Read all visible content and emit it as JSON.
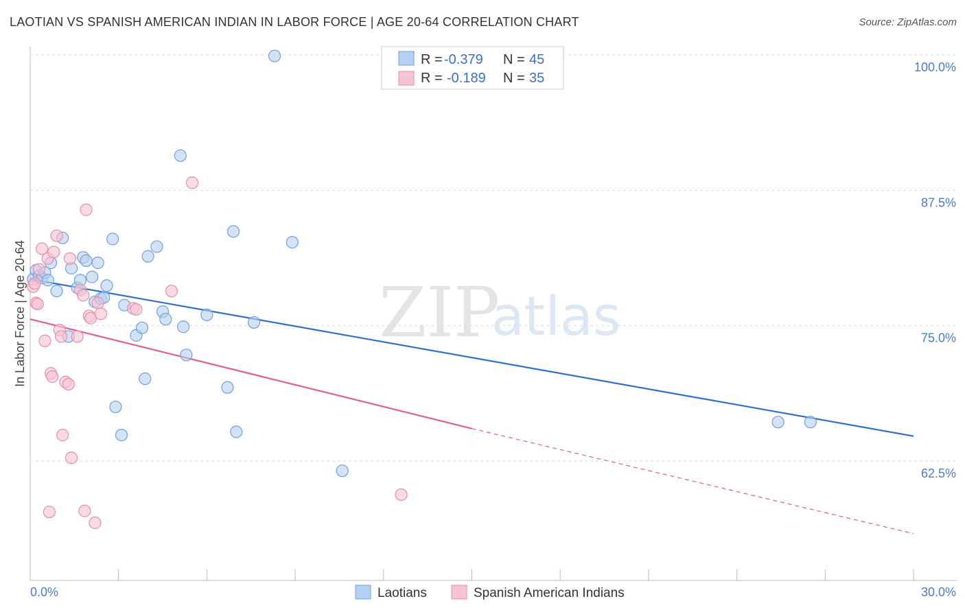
{
  "title": "LAOTIAN VS SPANISH AMERICAN INDIAN IN LABOR FORCE | AGE 20-64 CORRELATION CHART",
  "source": "Source: ZipAtlas.com",
  "watermark": {
    "part1": "ZIP",
    "part2": "atlas"
  },
  "chart_data": {
    "type": "scatter",
    "title": "LAOTIAN VS SPANISH AMERICAN INDIAN IN LABOR FORCE | AGE 20-64 CORRELATION CHART",
    "xlabel": "",
    "ylabel": "In Labor Force | Age 20-64",
    "xlim": [
      0,
      30
    ],
    "ylim": [
      52,
      102
    ],
    "x_tick_labels": [
      {
        "value": 0,
        "label": "0.0%"
      },
      {
        "value": 30,
        "label": "30.0%"
      }
    ],
    "y_ticks": [
      {
        "value": 100,
        "label": "100.0%"
      },
      {
        "value": 87.5,
        "label": "87.5%"
      },
      {
        "value": 75,
        "label": "75.0%"
      },
      {
        "value": 62.5,
        "label": "62.5%"
      }
    ],
    "legend": {
      "placement": "top-center",
      "entries": [
        {
          "r_label": "R =",
          "r_value": "-0.379",
          "n_label": "N =",
          "n_value": "45"
        },
        {
          "r_label": "R =",
          "r_value": "-0.189",
          "n_label": "N =",
          "n_value": "35"
        }
      ]
    },
    "series": [
      {
        "name": "Laotians",
        "color": "#6fa0dd",
        "fill": "#b7cff0",
        "line_color": "#2f6fcb",
        "trend": {
          "x0": 0,
          "y0": 79.3,
          "x1": 30,
          "y1": 64.8,
          "dashed_from": null
        },
        "points": [
          {
            "x": 0.1,
            "y": 79.3
          },
          {
            "x": 0.2,
            "y": 80.1
          },
          {
            "x": 0.3,
            "y": 79.6
          },
          {
            "x": 0.4,
            "y": 79.4
          },
          {
            "x": 0.5,
            "y": 79.9
          },
          {
            "x": 0.6,
            "y": 79.2
          },
          {
            "x": 0.7,
            "y": 80.8
          },
          {
            "x": 0.9,
            "y": 78.2
          },
          {
            "x": 1.1,
            "y": 83.1
          },
          {
            "x": 1.3,
            "y": 74.0
          },
          {
            "x": 1.4,
            "y": 80.3
          },
          {
            "x": 1.6,
            "y": 78.5
          },
          {
            "x": 1.7,
            "y": 79.2
          },
          {
            "x": 1.8,
            "y": 81.3
          },
          {
            "x": 1.9,
            "y": 81.0
          },
          {
            "x": 2.1,
            "y": 79.5
          },
          {
            "x": 2.2,
            "y": 77.2
          },
          {
            "x": 2.3,
            "y": 80.8
          },
          {
            "x": 2.4,
            "y": 77.5
          },
          {
            "x": 2.5,
            "y": 77.6
          },
          {
            "x": 2.6,
            "y": 78.7
          },
          {
            "x": 2.8,
            "y": 83.0
          },
          {
            "x": 2.9,
            "y": 67.5
          },
          {
            "x": 3.1,
            "y": 64.9
          },
          {
            "x": 3.2,
            "y": 76.9
          },
          {
            "x": 3.6,
            "y": 74.1
          },
          {
            "x": 3.8,
            "y": 74.8
          },
          {
            "x": 3.9,
            "y": 70.1
          },
          {
            "x": 4.0,
            "y": 81.4
          },
          {
            "x": 4.3,
            "y": 82.3
          },
          {
            "x": 4.5,
            "y": 76.3
          },
          {
            "x": 4.6,
            "y": 75.6
          },
          {
            "x": 5.1,
            "y": 90.7
          },
          {
            "x": 5.2,
            "y": 74.9
          },
          {
            "x": 5.3,
            "y": 72.3
          },
          {
            "x": 6.0,
            "y": 76.0
          },
          {
            "x": 6.7,
            "y": 69.3
          },
          {
            "x": 6.9,
            "y": 83.7
          },
          {
            "x": 7.0,
            "y": 65.2
          },
          {
            "x": 7.6,
            "y": 75.3
          },
          {
            "x": 8.3,
            "y": 99.9
          },
          {
            "x": 8.9,
            "y": 82.7
          },
          {
            "x": 10.6,
            "y": 61.6
          },
          {
            "x": 25.4,
            "y": 66.1
          },
          {
            "x": 26.5,
            "y": 66.1
          }
        ]
      },
      {
        "name": "Spanish American Indians",
        "color": "#e58fab",
        "fill": "#f6c3d3",
        "line_color": "#e05f8a",
        "trend": {
          "x0": 0,
          "y0": 75.6,
          "x1": 15,
          "y1": 65.5,
          "dashed_from": 15,
          "dash_x1": 30,
          "dash_y1": 55.8
        },
        "points": [
          {
            "x": 0.1,
            "y": 78.6
          },
          {
            "x": 0.15,
            "y": 78.9
          },
          {
            "x": 0.2,
            "y": 77.1
          },
          {
            "x": 0.25,
            "y": 77.0
          },
          {
            "x": 0.3,
            "y": 80.2
          },
          {
            "x": 0.4,
            "y": 82.1
          },
          {
            "x": 0.5,
            "y": 73.6
          },
          {
            "x": 0.6,
            "y": 81.2
          },
          {
            "x": 0.65,
            "y": 57.8
          },
          {
            "x": 0.7,
            "y": 70.6
          },
          {
            "x": 0.75,
            "y": 70.3
          },
          {
            "x": 0.8,
            "y": 81.8
          },
          {
            "x": 0.9,
            "y": 83.3
          },
          {
            "x": 1.0,
            "y": 74.6
          },
          {
            "x": 1.05,
            "y": 74.0
          },
          {
            "x": 1.1,
            "y": 64.9
          },
          {
            "x": 1.2,
            "y": 69.8
          },
          {
            "x": 1.3,
            "y": 69.6
          },
          {
            "x": 1.35,
            "y": 81.2
          },
          {
            "x": 1.4,
            "y": 62.8
          },
          {
            "x": 1.6,
            "y": 74.0
          },
          {
            "x": 1.7,
            "y": 78.3
          },
          {
            "x": 1.8,
            "y": 77.8
          },
          {
            "x": 1.85,
            "y": 57.9
          },
          {
            "x": 1.9,
            "y": 85.7
          },
          {
            "x": 2.0,
            "y": 75.9
          },
          {
            "x": 2.05,
            "y": 75.7
          },
          {
            "x": 2.2,
            "y": 56.8
          },
          {
            "x": 2.3,
            "y": 77.1
          },
          {
            "x": 2.4,
            "y": 76.1
          },
          {
            "x": 3.5,
            "y": 76.6
          },
          {
            "x": 3.6,
            "y": 76.5
          },
          {
            "x": 4.8,
            "y": 78.2
          },
          {
            "x": 5.5,
            "y": 88.2
          },
          {
            "x": 12.6,
            "y": 59.4
          }
        ]
      }
    ]
  },
  "bottom_legend": [
    {
      "label": "Laotians"
    },
    {
      "label": "Spanish American Indians"
    }
  ]
}
